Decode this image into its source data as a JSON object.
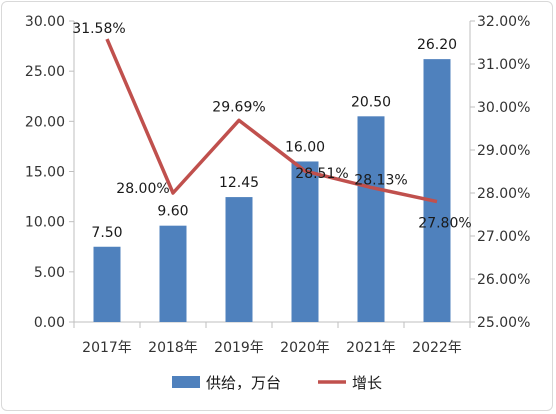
{
  "chart_data": {
    "type": "bar",
    "categories": [
      "2017年",
      "2018年",
      "2019年",
      "2020年",
      "2021年",
      "2022年"
    ],
    "series": [
      {
        "name": "供给，万台",
        "type": "bar",
        "axis": "left",
        "values": [
          7.5,
          9.6,
          12.45,
          16.0,
          20.5,
          26.2
        ],
        "labels": [
          "7.50",
          "9.60",
          "12.45",
          "16.00",
          "20.50",
          "26.20"
        ],
        "color": "#4F81BD"
      },
      {
        "name": "增长",
        "type": "line",
        "axis": "right",
        "values": [
          31.58,
          28.0,
          29.69,
          28.51,
          28.13,
          27.8
        ],
        "labels": [
          "31.58%",
          "28.00%",
          "29.69%",
          "28.51%",
          "28.13%",
          "27.80%"
        ],
        "color": "#C0504D"
      }
    ],
    "y_left": {
      "ylim": [
        0,
        30
      ],
      "ticks": [
        "0.00",
        "5.00",
        "10.00",
        "15.00",
        "20.00",
        "25.00",
        "30.00"
      ]
    },
    "y_right": {
      "ylim": [
        25,
        32
      ],
      "ticks": [
        "25.00%",
        "26.00%",
        "27.00%",
        "28.00%",
        "29.00%",
        "30.00%",
        "31.00%",
        "32.00%"
      ]
    },
    "grid": false,
    "legend_position": "bottom"
  }
}
